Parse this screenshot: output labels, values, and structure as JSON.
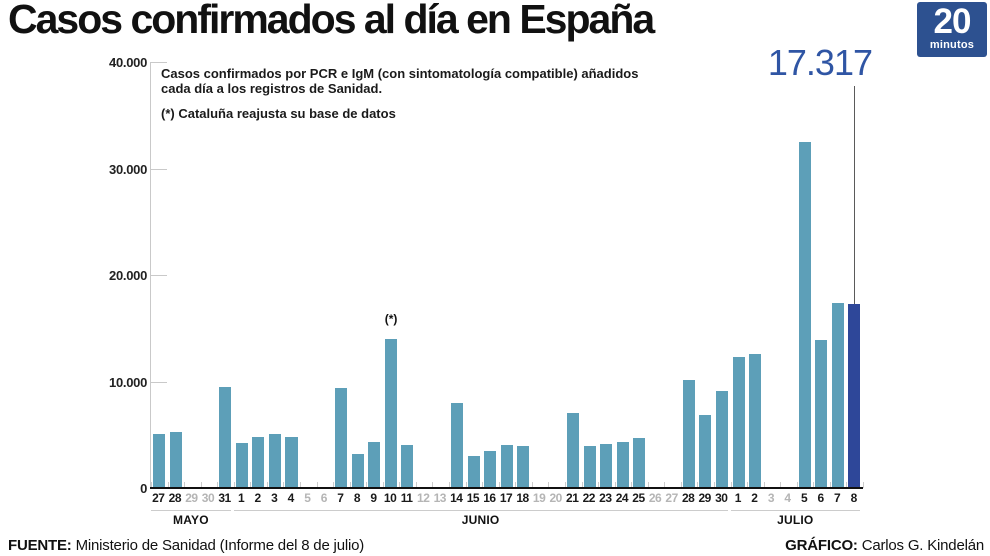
{
  "header": {
    "title": "Casos confirmados al día en España",
    "logo": {
      "number": "20",
      "word": "minutos"
    }
  },
  "callout": {
    "value_label": "17.317"
  },
  "annotation": {
    "line1": "Casos confirmados por PCR e IgM (con sintomatología compatible) añadidos",
    "line2": "cada día a los registros de Sanidad.",
    "note": "(*) Cataluña reajusta su base de datos"
  },
  "footer": {
    "source_label": "FUENTE:",
    "source_text": " Ministerio de Sanidad (Informe del 8 de julio)",
    "credit_label": "GRÁFICO:",
    "credit_text": " Carlos G. Kindelán"
  },
  "colors": {
    "bar": "#5d9fb8",
    "bar_highlight": "#2e4799",
    "accent_text": "#2f55a4",
    "logo_bg": "#2d5190",
    "axis": "#c9c9c9"
  },
  "chart_data": {
    "type": "bar",
    "title": "Casos confirmados al día en España",
    "subtitle": "Casos confirmados por PCR e IgM (con sintomatología compatible) añadidos cada día a los registros de Sanidad.",
    "footnote": "(*) Cataluña reajusta su base de datos",
    "xlabel": "",
    "ylabel": "",
    "ylim": [
      0,
      40000
    ],
    "grid": false,
    "legend": false,
    "highlight_value_label": "17.317",
    "yticks": [
      {
        "value": 40000,
        "label": "40.000"
      },
      {
        "value": 30000,
        "label": "30.000"
      },
      {
        "value": 20000,
        "label": "20.000"
      },
      {
        "value": 10000,
        "label": "10.000"
      },
      {
        "value": 0,
        "label": "0"
      }
    ],
    "days": [
      {
        "month": "MAYO",
        "day": "27",
        "value": 5100
      },
      {
        "month": "MAYO",
        "day": "28",
        "value": 5300
      },
      {
        "month": "MAYO",
        "day": "29",
        "value": null
      },
      {
        "month": "MAYO",
        "day": "30",
        "value": null
      },
      {
        "month": "MAYO",
        "day": "31",
        "value": 9500
      },
      {
        "month": "JUNIO",
        "day": "1",
        "value": 4200
      },
      {
        "month": "JUNIO",
        "day": "2",
        "value": 4800
      },
      {
        "month": "JUNIO",
        "day": "3",
        "value": 5100
      },
      {
        "month": "JUNIO",
        "day": "4",
        "value": 4800
      },
      {
        "month": "JUNIO",
        "day": "5",
        "value": null
      },
      {
        "month": "JUNIO",
        "day": "6",
        "value": null
      },
      {
        "month": "JUNIO",
        "day": "7",
        "value": 9400
      },
      {
        "month": "JUNIO",
        "day": "8",
        "value": 3200
      },
      {
        "month": "JUNIO",
        "day": "9",
        "value": 4300
      },
      {
        "month": "JUNIO",
        "day": "10",
        "value": 14000,
        "note": "(*)"
      },
      {
        "month": "JUNIO",
        "day": "11",
        "value": 4000
      },
      {
        "month": "JUNIO",
        "day": "12",
        "value": null
      },
      {
        "month": "JUNIO",
        "day": "13",
        "value": null
      },
      {
        "month": "JUNIO",
        "day": "14",
        "value": 8000
      },
      {
        "month": "JUNIO",
        "day": "15",
        "value": 3000
      },
      {
        "month": "JUNIO",
        "day": "16",
        "value": 3500
      },
      {
        "month": "JUNIO",
        "day": "17",
        "value": 4000
      },
      {
        "month": "JUNIO",
        "day": "18",
        "value": 3900
      },
      {
        "month": "JUNIO",
        "day": "19",
        "value": null
      },
      {
        "month": "JUNIO",
        "day": "20",
        "value": null
      },
      {
        "month": "JUNIO",
        "day": "21",
        "value": 7000
      },
      {
        "month": "JUNIO",
        "day": "22",
        "value": 3900
      },
      {
        "month": "JUNIO",
        "day": "23",
        "value": 4100
      },
      {
        "month": "JUNIO",
        "day": "24",
        "value": 4300
      },
      {
        "month": "JUNIO",
        "day": "25",
        "value": 4700
      },
      {
        "month": "JUNIO",
        "day": "26",
        "value": null
      },
      {
        "month": "JUNIO",
        "day": "27",
        "value": null
      },
      {
        "month": "JUNIO",
        "day": "28",
        "value": 10100
      },
      {
        "month": "JUNIO",
        "day": "29",
        "value": 6900
      },
      {
        "month": "JUNIO",
        "day": "30",
        "value": 9100
      },
      {
        "month": "JULIO",
        "day": "1",
        "value": 12300
      },
      {
        "month": "JULIO",
        "day": "2",
        "value": 12600
      },
      {
        "month": "JULIO",
        "day": "3",
        "value": null
      },
      {
        "month": "JULIO",
        "day": "4",
        "value": null
      },
      {
        "month": "JULIO",
        "day": "5",
        "value": 32500
      },
      {
        "month": "JULIO",
        "day": "6",
        "value": 13900
      },
      {
        "month": "JULIO",
        "day": "7",
        "value": 17400
      },
      {
        "month": "JULIO",
        "day": "8",
        "value": 17317,
        "highlight": true
      }
    ]
  }
}
